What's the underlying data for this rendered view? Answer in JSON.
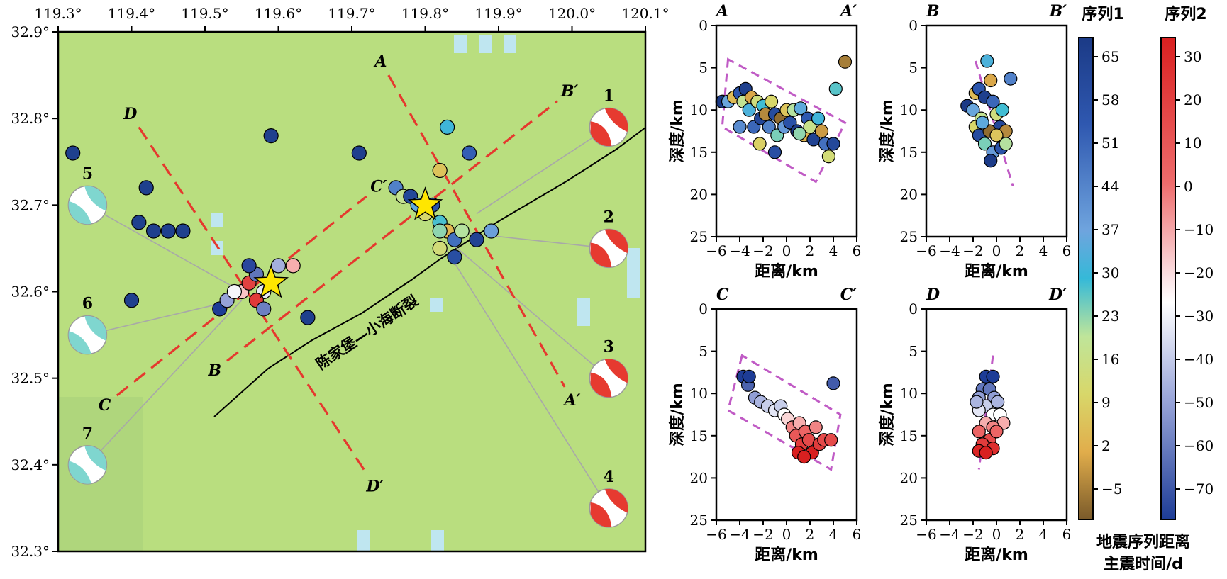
{
  "map": {
    "lon_ticks": [
      "119.3°",
      "119.4°",
      "119.5°",
      "119.6°",
      "119.7°",
      "119.8°",
      "119.9°",
      "120.0°",
      "120.1°"
    ],
    "lat_ticks": [
      "32.9°",
      "32.8°",
      "32.7°",
      "32.6°",
      "32.5°",
      "32.4°",
      "32.3°"
    ],
    "lon_range": [
      119.3,
      120.1
    ],
    "lat_range": [
      32.3,
      32.9
    ],
    "fault_label": "陈家堡—小海断裂",
    "profiles": [
      {
        "start": "A",
        "end": "A′",
        "p1": [
          119.75,
          32.85
        ],
        "p2": [
          119.99,
          32.49
        ]
      },
      {
        "start": "B",
        "end": "B′",
        "p1": [
          119.53,
          32.52
        ],
        "p2": [
          119.98,
          32.82
        ]
      },
      {
        "start": "C",
        "end": "C′",
        "p1": [
          119.38,
          32.48
        ],
        "p2": [
          119.72,
          32.71
        ]
      },
      {
        "start": "D",
        "end": "D′",
        "p1": [
          119.41,
          32.79
        ],
        "p2": [
          119.72,
          32.39
        ]
      }
    ],
    "mechanisms": [
      {
        "n": "1",
        "lon": 120.05,
        "lat": 32.79,
        "color": "#e63a30"
      },
      {
        "n": "2",
        "lon": 120.05,
        "lat": 32.65,
        "color": "#e63a30"
      },
      {
        "n": "3",
        "lon": 120.05,
        "lat": 32.5,
        "color": "#e63a30"
      },
      {
        "n": "4",
        "lon": 120.05,
        "lat": 32.35,
        "color": "#e63a30"
      },
      {
        "n": "5",
        "lon": 119.34,
        "lat": 32.7,
        "color": "#7fd6cf"
      },
      {
        "n": "6",
        "lon": 119.34,
        "lat": 32.55,
        "color": "#7fd6cf"
      },
      {
        "n": "7",
        "lon": 119.34,
        "lat": 32.4,
        "color": "#7fd6cf"
      }
    ]
  },
  "profiles": [
    {
      "left": "A",
      "right": "A′",
      "xlabel": "距离/km",
      "ylabel": "深度/km"
    },
    {
      "left": "B",
      "right": "B′",
      "xlabel": "距离/km",
      "ylabel": "深度/km"
    },
    {
      "left": "C",
      "right": "C′",
      "xlabel": "距离/km",
      "ylabel": "深度/km"
    },
    {
      "left": "D",
      "right": "D′",
      "xlabel": "距离/km",
      "ylabel": "深度/km"
    }
  ],
  "colorbars": {
    "series1": {
      "title": "序列1",
      "ticks": [
        "65",
        "58",
        "51",
        "44",
        "37",
        "30",
        "23",
        "16",
        "9",
        "2",
        "−5"
      ]
    },
    "series2": {
      "title": "序列2",
      "ticks": [
        "30",
        "20",
        "10",
        "0",
        "−10",
        "−20",
        "−30",
        "−40",
        "−50",
        "−60",
        "−70"
      ]
    },
    "footer1": "地震序列距离",
    "footer2": "主震时间/d"
  },
  "chart_data": [
    {
      "type": "scatter",
      "title": "",
      "xlabel": "",
      "ylabel": "",
      "xlim": [
        119.3,
        120.1
      ],
      "ylim": [
        32.3,
        32.9
      ],
      "series": [
        {
          "name": "序列1",
          "points": [
            [
              119.32,
              32.76
            ],
            [
              119.42,
              32.72
            ],
            [
              119.41,
              32.68
            ],
            [
              119.43,
              32.67
            ],
            [
              119.45,
              32.67
            ],
            [
              119.47,
              32.67
            ],
            [
              119.4,
              32.59
            ],
            [
              119.59,
              32.78
            ],
            [
              119.71,
              32.76
            ],
            [
              119.76,
              32.72
            ],
            [
              119.77,
              32.71
            ],
            [
              119.78,
              32.71
            ],
            [
              119.79,
              32.7
            ],
            [
              119.8,
              32.69
            ],
            [
              119.81,
              32.7
            ],
            [
              119.82,
              32.68
            ],
            [
              119.83,
              32.67
            ],
            [
              119.84,
              32.66
            ],
            [
              119.85,
              32.67
            ],
            [
              119.87,
              32.66
            ],
            [
              119.89,
              32.67
            ],
            [
              119.82,
              32.65
            ],
            [
              119.84,
              32.64
            ],
            [
              119.83,
              32.79
            ],
            [
              119.82,
              32.74
            ],
            [
              119.86,
              32.76
            ],
            [
              119.82,
              32.67
            ],
            [
              119.64,
              32.57
            ]
          ]
        },
        {
          "name": "序列2",
          "points": [
            [
              119.52,
              32.58
            ],
            [
              119.53,
              32.59
            ],
            [
              119.55,
              32.6
            ],
            [
              119.56,
              32.61
            ],
            [
              119.57,
              32.62
            ],
            [
              119.58,
              32.6
            ],
            [
              119.59,
              32.61
            ],
            [
              119.56,
              32.63
            ],
            [
              119.6,
              32.63
            ],
            [
              119.62,
              32.63
            ],
            [
              119.57,
              32.59
            ],
            [
              119.58,
              32.58
            ],
            [
              119.54,
              32.6
            ]
          ]
        }
      ],
      "mainshocks": [
        [
          119.59,
          32.61
        ],
        [
          119.8,
          32.7
        ]
      ]
    },
    {
      "type": "scatter",
      "title": "",
      "xlabel": "距离/km",
      "ylabel": "深度/km",
      "xlim": [
        -6,
        6
      ],
      "ylim": [
        0,
        25
      ],
      "series": [
        {
          "name": "序列1",
          "points": [
            [
              -5.5,
              9
            ],
            [
              -5,
              9
            ],
            [
              -4.5,
              8.5
            ],
            [
              -4,
              8
            ],
            [
              -3.7,
              9
            ],
            [
              -3.5,
              7.5
            ],
            [
              -3.2,
              10
            ],
            [
              -3,
              8.5
            ],
            [
              -2.8,
              12
            ],
            [
              -2.5,
              9
            ],
            [
              -2.2,
              11
            ],
            [
              -2,
              9.5
            ],
            [
              -1.8,
              10.5
            ],
            [
              -1.5,
              12
            ],
            [
              -1.3,
              9
            ],
            [
              -1,
              10.5
            ],
            [
              -0.8,
              13
            ],
            [
              -0.5,
              11
            ],
            [
              -0.2,
              12
            ],
            [
              0,
              10
            ],
            [
              0.3,
              11.5
            ],
            [
              0.6,
              10
            ],
            [
              0.9,
              12.5
            ],
            [
              1.2,
              9.8
            ],
            [
              1.5,
              13
            ],
            [
              1.8,
              11
            ],
            [
              2,
              12
            ],
            [
              2.3,
              13.5
            ],
            [
              2.7,
              11
            ],
            [
              3,
              12.5
            ],
            [
              3.3,
              14
            ],
            [
              3.6,
              15.5
            ],
            [
              4,
              14
            ],
            [
              4.2,
              7.5
            ],
            [
              5,
              4.3
            ],
            [
              -4,
              12
            ],
            [
              -2.3,
              14
            ],
            [
              -1,
              15
            ],
            [
              1.1,
              12.8
            ]
          ]
        }
      ]
    },
    {
      "type": "scatter",
      "title": "",
      "xlabel": "距离/km",
      "ylabel": "深度/km",
      "xlim": [
        -6,
        6
      ],
      "ylim": [
        0,
        25
      ],
      "series": [
        {
          "name": "序列1",
          "points": [
            [
              -2.5,
              9.5
            ],
            [
              -2,
              10
            ],
            [
              -1.8,
              8
            ],
            [
              -1.5,
              7.5
            ],
            [
              -1.3,
              11
            ],
            [
              -1,
              8.5
            ],
            [
              -0.8,
              4.2
            ],
            [
              -0.5,
              6.5
            ],
            [
              -0.3,
              9
            ],
            [
              0,
              10.5
            ],
            [
              0.3,
              12
            ],
            [
              0.5,
              10
            ],
            [
              0.8,
              12.5
            ],
            [
              1.2,
              6.3
            ],
            [
              -1.8,
              12
            ],
            [
              -1.5,
              13
            ],
            [
              -1,
              14
            ],
            [
              -0.6,
              12.5
            ],
            [
              -0.3,
              15
            ],
            [
              0,
              13
            ],
            [
              0.4,
              14.5
            ],
            [
              0.8,
              14
            ],
            [
              -0.5,
              16
            ],
            [
              -1.2,
              11.5
            ]
          ]
        }
      ]
    },
    {
      "type": "scatter",
      "title": "",
      "xlabel": "距离/km",
      "ylabel": "深度/km",
      "xlim": [
        -6,
        6
      ],
      "ylim": [
        0,
        25
      ],
      "series": [
        {
          "name": "序列2",
          "points": [
            [
              -3.7,
              8
            ],
            [
              -3.3,
              9
            ],
            [
              -3.2,
              8
            ],
            [
              -2.7,
              10.5
            ],
            [
              -2.2,
              11
            ],
            [
              -1.6,
              11.5
            ],
            [
              -1,
              12
            ],
            [
              -0.5,
              11.5
            ],
            [
              -0.2,
              12.5
            ],
            [
              0.1,
              13
            ],
            [
              0.5,
              14
            ],
            [
              0.8,
              15
            ],
            [
              1.1,
              13.5
            ],
            [
              1.3,
              16
            ],
            [
              1.6,
              14.5
            ],
            [
              1.9,
              15.5
            ],
            [
              2.2,
              17
            ],
            [
              2.5,
              14
            ],
            [
              2.8,
              16
            ],
            [
              3.2,
              15.5
            ],
            [
              3.8,
              15.5
            ],
            [
              4,
              8.8
            ],
            [
              1,
              17
            ],
            [
              1.5,
              17.5
            ]
          ]
        }
      ]
    },
    {
      "type": "scatter",
      "title": "",
      "xlabel": "距离/km",
      "ylabel": "深度/km",
      "xlim": [
        -6,
        6
      ],
      "ylim": [
        0,
        25
      ],
      "series": [
        {
          "name": "序列2",
          "points": [
            [
              -0.9,
              8
            ],
            [
              -0.3,
              8
            ],
            [
              -1.2,
              9.5
            ],
            [
              -0.6,
              9.5
            ],
            [
              -0.2,
              10.5
            ],
            [
              -1.5,
              10.5
            ],
            [
              -0.9,
              11.5
            ],
            [
              -1.5,
              12
            ],
            [
              -0.3,
              12.5
            ],
            [
              0.3,
              12.5
            ],
            [
              0.6,
              13.5
            ],
            [
              -0.9,
              13.5
            ],
            [
              -0.3,
              14
            ],
            [
              -1.5,
              14.5
            ],
            [
              -0.6,
              15.5
            ],
            [
              -1.2,
              16
            ],
            [
              -0.3,
              16.5
            ],
            [
              -1.5,
              16.8
            ],
            [
              -0.9,
              17
            ],
            [
              0,
              14.5
            ],
            [
              -1.7,
              11
            ],
            [
              0.1,
              11
            ]
          ]
        }
      ]
    }
  ]
}
